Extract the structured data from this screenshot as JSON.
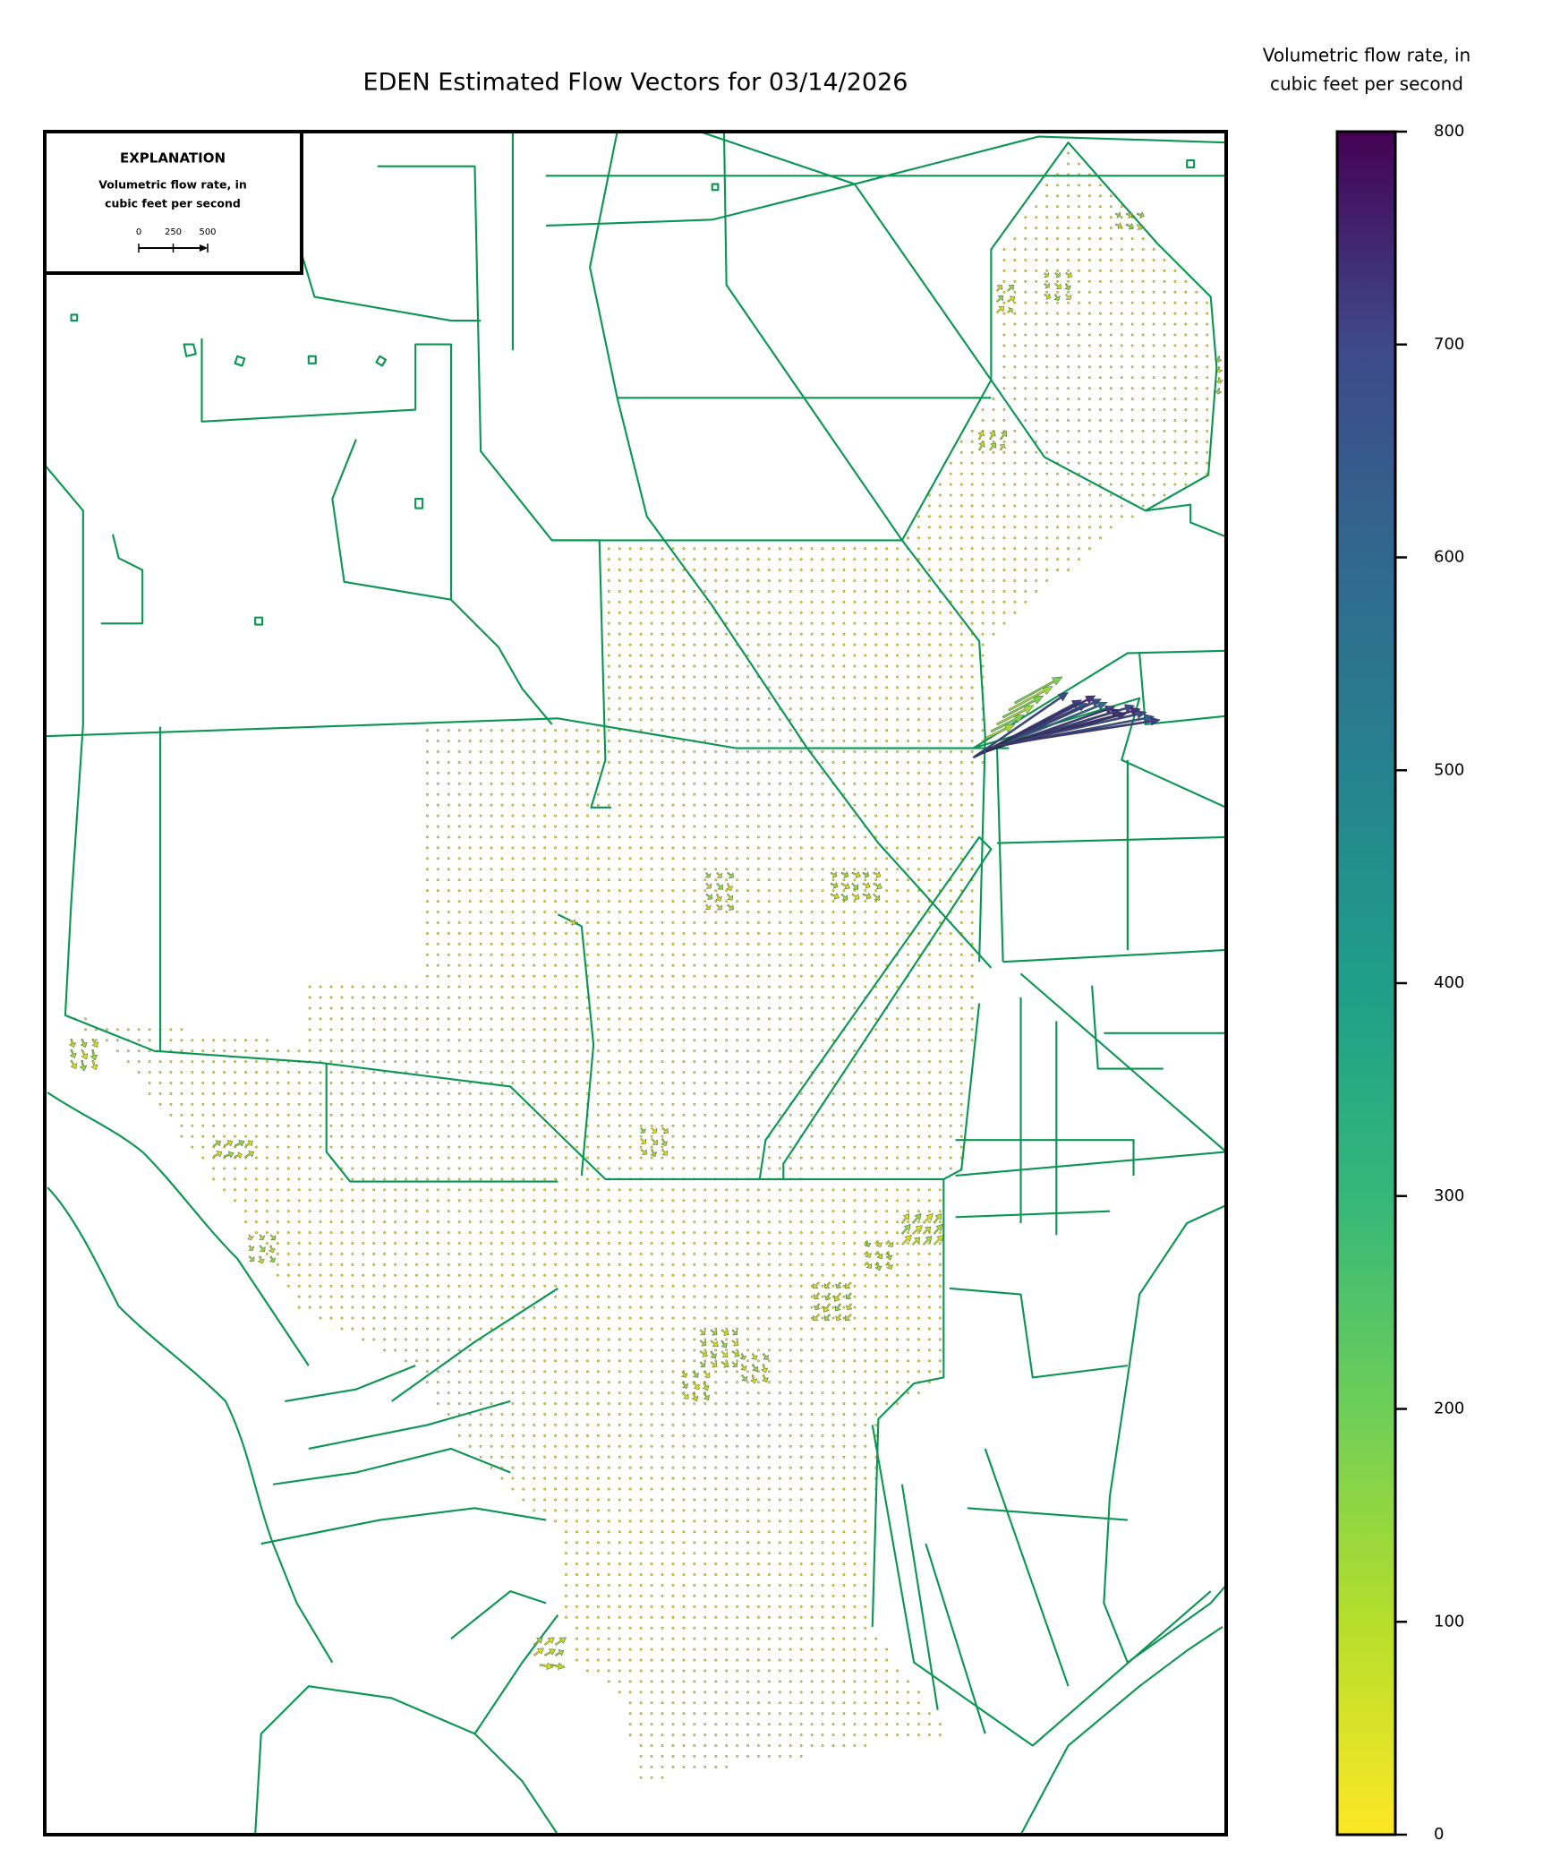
{
  "title": "EDEN Estimated Flow Vectors for 03/14/2026",
  "explanation": {
    "title": "EXPLANATION",
    "label_lines": [
      "Volumetric flow rate, in",
      "cubic feet per second"
    ],
    "scale_ticks": [
      0,
      250,
      500
    ]
  },
  "colorbar": {
    "label_lines": [
      "Volumetric flow rate, in",
      "cubic feet per second"
    ],
    "lim": [
      0,
      800
    ],
    "ticks": [
      0,
      100,
      200,
      300,
      400,
      500,
      600,
      700,
      800
    ]
  }
}
